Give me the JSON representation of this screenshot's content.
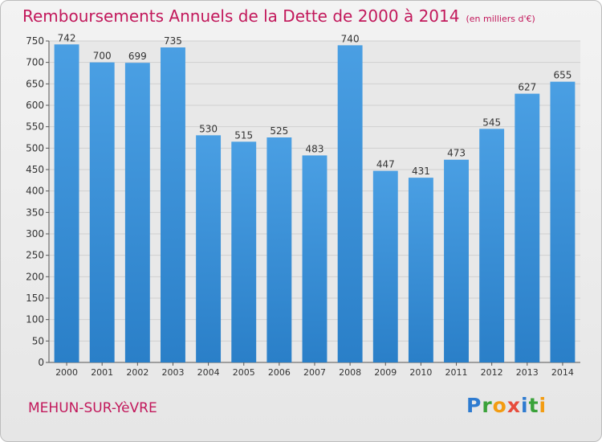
{
  "header": {
    "title": "Remboursements Annuels de la Dette de 2000 à 2014",
    "unit": "(en milliers d'€)"
  },
  "footer": {
    "commune": "MEHUN-SUR-YèVRE",
    "logo": [
      "P",
      "r",
      "o",
      "x",
      "i",
      "t",
      "i"
    ],
    "logo_colors": [
      "#2e7bd0",
      "#3aa23a",
      "#f39c12",
      "#e74c3c",
      "#2e7bd0",
      "#3aa23a",
      "#f39c12"
    ]
  },
  "colors": {
    "bar": "#4a9fe3",
    "bar_dark": "#2a7fc8",
    "title": "#c2185b"
  },
  "chart_data": {
    "type": "bar",
    "categories": [
      "2000",
      "2001",
      "2002",
      "2003",
      "2004",
      "2005",
      "2006",
      "2007",
      "2008",
      "2009",
      "2010",
      "2011",
      "2012",
      "2013",
      "2014"
    ],
    "values": [
      742,
      700,
      699,
      735,
      530,
      515,
      525,
      483,
      740,
      447,
      431,
      473,
      545,
      627,
      655
    ],
    "ylim": [
      0,
      750
    ],
    "yticks": [
      0,
      50,
      100,
      150,
      200,
      250,
      300,
      350,
      400,
      450,
      500,
      550,
      600,
      650,
      700,
      750
    ],
    "grid": true
  }
}
